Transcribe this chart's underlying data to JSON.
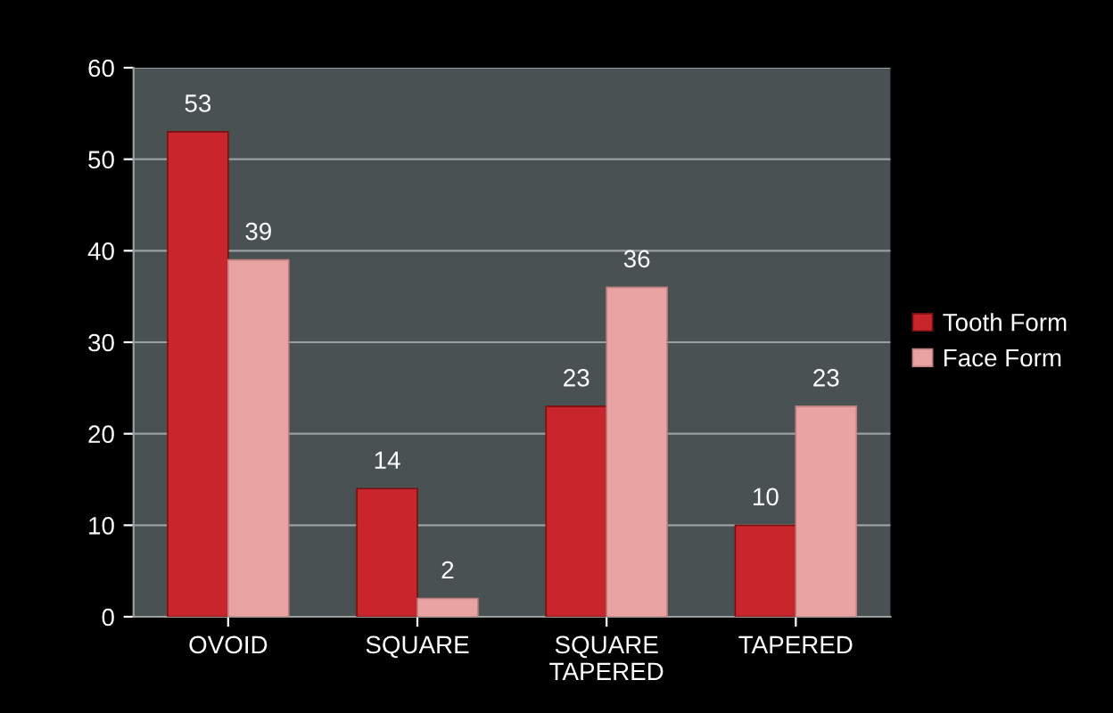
{
  "chart_data": {
    "type": "bar",
    "categories": [
      "OVOID",
      "SQUARE",
      "SQUARE\nTAPERED",
      "TAPERED"
    ],
    "series": [
      {
        "name": "Tooth Form",
        "color": "#c8262c",
        "values": [
          53,
          14,
          23,
          10
        ]
      },
      {
        "name": "Face Form",
        "color": "#e9a3a3",
        "values": [
          39,
          2,
          36,
          23
        ]
      }
    ],
    "ylim": [
      0,
      60
    ],
    "yticks": [
      0,
      10,
      20,
      30,
      40,
      50,
      60
    ],
    "grid": "y",
    "legend": "right",
    "data_labels": true
  }
}
